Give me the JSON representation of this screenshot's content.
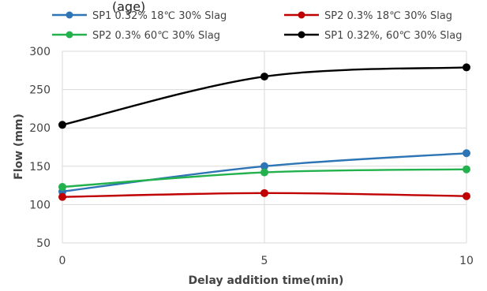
{
  "chart_data": {
    "type": "line",
    "top_text": "(age)",
    "xlabel": "Delay addition time(min)",
    "ylabel": "Flow (mm)",
    "x": [
      0,
      5,
      10
    ],
    "x_ticks": [
      "0",
      "5",
      "10"
    ],
    "ylim": [
      50,
      300
    ],
    "y_ticks": [
      "50",
      "100",
      "150",
      "200",
      "250",
      "300"
    ],
    "grid": true,
    "legend_position": "top",
    "series": [
      {
        "name": "SP1 0.32% 18℃ 30% Slag",
        "color": "#2E75B6",
        "values": [
          117,
          150,
          167
        ]
      },
      {
        "name": "SP2 0.3% 18℃ 30% Slag",
        "color": "#C00000",
        "values": [
          110,
          115,
          111
        ]
      },
      {
        "name": "SP2 0.3% 60℃ 30% Slag",
        "color": "#22B14C",
        "values": [
          123,
          142,
          146
        ]
      },
      {
        "name": "SP1 0.32%, 60℃ 30% Slag",
        "color": "#000000",
        "values": [
          204,
          267,
          279
        ]
      }
    ]
  }
}
